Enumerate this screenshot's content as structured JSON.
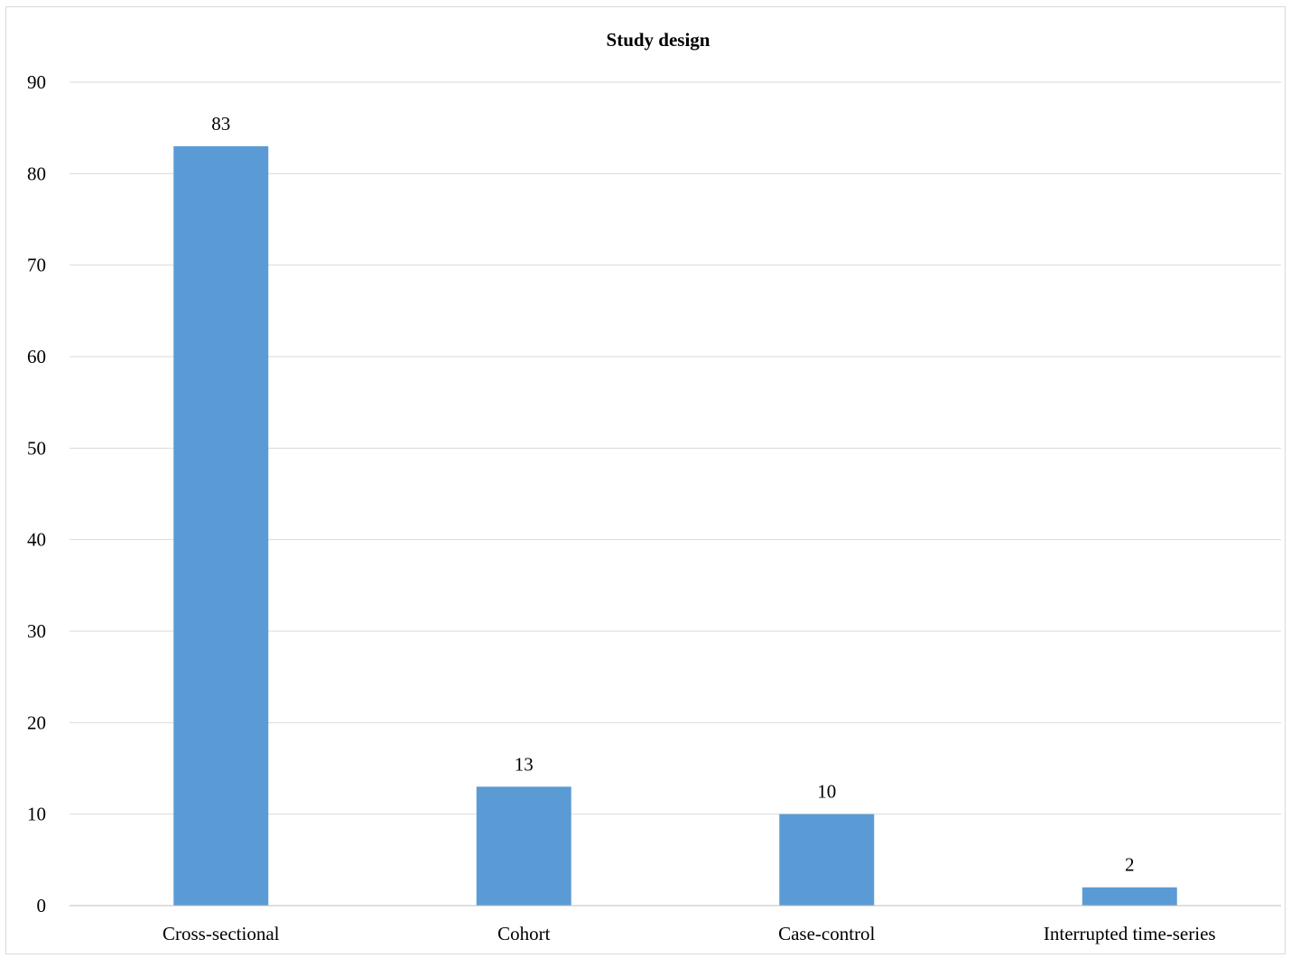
{
  "chart_data": {
    "type": "bar",
    "title": "Study design",
    "xlabel": "",
    "ylabel": "",
    "categories": [
      "Cross-sectional",
      "Cohort",
      "Case-control",
      "Interrupted time-series"
    ],
    "values": [
      83,
      13,
      10,
      2
    ],
    "data_labels": [
      "83",
      "13",
      "10",
      "2"
    ],
    "ylim": [
      0,
      90
    ],
    "yticks": [
      0,
      10,
      20,
      30,
      40,
      50,
      60,
      70,
      80,
      90
    ],
    "ytick_labels": [
      "0",
      "10",
      "20",
      "30",
      "40",
      "50",
      "60",
      "70",
      "80",
      "90"
    ],
    "grid": true,
    "legend": "none",
    "bar_color": "#5b9bd5"
  }
}
